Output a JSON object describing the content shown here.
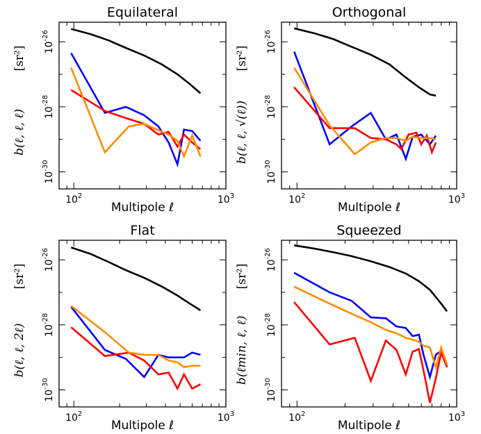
{
  "chart_data": [
    {
      "type": "line",
      "title": "Equilateral",
      "xlabel": "Multipole ℓ",
      "ylabel": "b(ℓ, ℓ, ℓ)",
      "yunit": "[sr²]",
      "xscale": "log",
      "yscale": "log",
      "xlim": [
        80,
        1000
      ],
      "ylim": [
        3e-31,
        4e-26
      ],
      "xticks": [
        {
          "base": "10",
          "exp": "2",
          "value": 100
        },
        {
          "base": "10",
          "exp": "3",
          "value": 1000
        }
      ],
      "yticks": [
        {
          "base": "10",
          "exp": "-30",
          "value": 1e-30
        },
        {
          "base": "10",
          "exp": "-28",
          "value": 1e-28
        },
        {
          "base": "10",
          "exp": "-26",
          "value": 1e-26
        }
      ],
      "series": [
        {
          "color": "#000000",
          "x": [
            96,
            130,
            170,
            220,
            290,
            380,
            480,
            580,
            680
          ],
          "y": [
            2.5e-26,
            1.7e-26,
            1.1e-26,
            6.5e-27,
            3.8e-27,
            2e-27,
            1e-27,
            5e-28,
            2.6e-28
          ]
        },
        {
          "color": "#0000ff",
          "x": [
            96,
            160,
            220,
            290,
            360,
            420,
            480,
            530,
            600,
            680
          ],
          "y": [
            4.5e-27,
            6.5e-29,
            1e-28,
            5.5e-29,
            2.5e-29,
            8e-30,
            1.7e-30,
            2e-29,
            1.8e-29,
            9e-30
          ]
        },
        {
          "color": "#ff0000",
          "x": [
            96,
            160,
            220,
            290,
            360,
            420,
            480,
            530,
            600,
            680
          ],
          "y": [
            3.3e-28,
            7.5e-29,
            4.5e-29,
            3e-29,
            1.4e-29,
            1.7e-29,
            6e-30,
            1.4e-29,
            8e-30,
            5e-30
          ]
        },
        {
          "color": "#ff8c00",
          "x": [
            96,
            160,
            230,
            290,
            360,
            420,
            480,
            530,
            600,
            680
          ],
          "y": [
            1.6e-27,
            4e-30,
            2.5e-29,
            3e-29,
            1.9e-29,
            1.4e-29,
            9e-30,
            3e-30,
            1.3e-29,
            3e-30
          ]
        }
      ]
    },
    {
      "type": "line",
      "title": "Orthogonal",
      "xlabel": "Multipole ℓ",
      "ylabel": "b(ℓ, ℓ, √(ℓ))",
      "yunit": "[sr²]",
      "xscale": "log",
      "yscale": "log",
      "xlim": [
        80,
        1000
      ],
      "ylim": [
        3e-31,
        4e-26
      ],
      "xticks": [
        {
          "base": "10",
          "exp": "2",
          "value": 100
        },
        {
          "base": "10",
          "exp": "3",
          "value": 1000
        }
      ],
      "yticks": [
        {
          "base": "10",
          "exp": "-30",
          "value": 1e-30
        },
        {
          "base": "10",
          "exp": "-28",
          "value": 1e-28
        },
        {
          "base": "10",
          "exp": "-26",
          "value": 1e-26
        }
      ],
      "series": [
        {
          "color": "#000000",
          "x": [
            96,
            130,
            170,
            220,
            290,
            380,
            480,
            580,
            680,
            740
          ],
          "y": [
            2.6e-26,
            1.8e-26,
            1.2e-26,
            7e-27,
            4e-27,
            2e-27,
            8e-28,
            4e-28,
            2.4e-28,
            2.2e-28
          ]
        },
        {
          "color": "#0000ff",
          "x": [
            96,
            160,
            220,
            290,
            360,
            420,
            480,
            530,
            600,
            680,
            740
          ],
          "y": [
            5e-27,
            7e-30,
            2.5e-29,
            6.5e-29,
            1e-29,
            1.4e-29,
            2.5e-30,
            1.2e-29,
            1.4e-29,
            7e-30,
            1.3e-29
          ]
        },
        {
          "color": "#ff0000",
          "x": [
            96,
            160,
            230,
            290,
            360,
            420,
            450,
            500,
            560,
            600,
            650,
            700,
            740
          ],
          "y": [
            4e-28,
            2.2e-29,
            2.2e-29,
            1.1e-29,
            1e-29,
            7e-30,
            5e-30,
            1.4e-29,
            1.6e-29,
            7e-30,
            1.3e-29,
            4e-30,
            8e-30
          ]
        },
        {
          "color": "#ff8c00",
          "x": [
            96,
            160,
            230,
            290,
            360,
            420,
            480,
            530,
            600,
            680,
            740
          ],
          "y": [
            1.6e-27,
            2.7e-29,
            3.5e-30,
            8e-30,
            1.1e-29,
            1.1e-29,
            9e-30,
            1.2e-29,
            1.1e-29,
            1.1e-29,
            1e-29
          ]
        }
      ]
    },
    {
      "type": "line",
      "title": "Flat",
      "xlabel": "Multipole ℓ",
      "ylabel": "b(ℓ, ℓ, 2ℓ)",
      "yunit": "[sr²]",
      "xscale": "log",
      "yscale": "log",
      "xlim": [
        80,
        1000
      ],
      "ylim": [
        3e-31,
        4e-26
      ],
      "xticks": [
        {
          "base": "10",
          "exp": "2",
          "value": 100
        },
        {
          "base": "10",
          "exp": "3",
          "value": 1000
        }
      ],
      "yticks": [
        {
          "base": "10",
          "exp": "-30",
          "value": 1e-30
        },
        {
          "base": "10",
          "exp": "-28",
          "value": 1e-28
        },
        {
          "base": "10",
          "exp": "-26",
          "value": 1e-26
        }
      ],
      "series": [
        {
          "color": "#000000",
          "x": [
            96,
            130,
            170,
            220,
            290,
            380,
            480,
            580,
            680
          ],
          "y": [
            2.4e-26,
            1.5e-26,
            8.5e-27,
            4.8e-27,
            2.8e-27,
            1.5e-27,
            8e-28,
            4.5e-28,
            2.8e-28
          ]
        },
        {
          "color": "#0000ff",
          "x": [
            96,
            160,
            220,
            290,
            360,
            420,
            480,
            530,
            600,
            680
          ],
          "y": [
            3.6e-28,
            1.7e-29,
            9e-30,
            2.5e-30,
            1.2e-29,
            1e-29,
            1e-29,
            1e-29,
            1.4e-29,
            1.2e-29
          ]
        },
        {
          "color": "#ff0000",
          "x": [
            96,
            160,
            230,
            290,
            360,
            420,
            480,
            530,
            600,
            680
          ],
          "y": [
            8.5e-29,
            1.1e-29,
            1.4e-29,
            8e-30,
            3e-30,
            3.4e-30,
            1.1e-30,
            3e-30,
            1.1e-30,
            1.5e-30
          ]
        },
        {
          "color": "#ff8c00",
          "x": [
            96,
            160,
            230,
            290,
            360,
            420,
            480,
            530,
            600,
            680
          ],
          "y": [
            3.8e-28,
            6e-29,
            1.4e-29,
            1.2e-29,
            1.2e-29,
            8e-30,
            7e-30,
            5e-30,
            5.5e-30,
            5.5e-30
          ]
        }
      ]
    },
    {
      "type": "line",
      "title": "Squeezed",
      "xlabel": "Multipole ℓ",
      "ylabel": "b(ℓmin, ℓ, ℓ)",
      "yunit": "[sr²]",
      "xscale": "log",
      "yscale": "log",
      "xlim": [
        80,
        1000
      ],
      "ylim": [
        3e-31,
        4e-26
      ],
      "xticks": [
        {
          "base": "10",
          "exp": "2",
          "value": 100
        },
        {
          "base": "10",
          "exp": "3",
          "value": 1000
        }
      ],
      "yticks": [
        {
          "base": "10",
          "exp": "-30",
          "value": 1e-30
        },
        {
          "base": "10",
          "exp": "-28",
          "value": 1e-28
        },
        {
          "base": "10",
          "exp": "-26",
          "value": 1e-26
        }
      ],
      "series": [
        {
          "color": "#000000",
          "x": [
            96,
            130,
            170,
            220,
            290,
            380,
            480,
            580,
            680,
            800,
            870
          ],
          "y": [
            2.8e-26,
            2.2e-26,
            1.7e-26,
            1.3e-26,
            9e-27,
            6e-27,
            3.8e-27,
            2.2e-27,
            1.2e-27,
            4.5e-28,
            2.6e-28
          ]
        },
        {
          "color": "#0000ff",
          "x": [
            96,
            160,
            220,
            290,
            360,
            420,
            480,
            530,
            580,
            620,
            680,
            740,
            800,
            870
          ],
          "y": [
            4e-27,
            1e-27,
            5.5e-28,
            1.7e-28,
            1.6e-28,
            9e-29,
            8e-29,
            4.5e-29,
            5e-29,
            1.2e-29,
            2.5e-30,
            1.2e-29,
            1.6e-29,
            5e-30
          ]
        },
        {
          "color": "#ff0000",
          "x": [
            96,
            160,
            230,
            290,
            360,
            420,
            480,
            530,
            580,
            620,
            680,
            740,
            800,
            870
          ],
          "y": [
            5e-28,
            2.5e-29,
            4e-29,
            1.9e-30,
            3.3e-29,
            1.7e-29,
            3e-30,
            1.5e-29,
            1.8e-29,
            4e-30,
            4e-31,
            2.3e-30,
            1.4e-29,
            5e-30
          ]
        },
        {
          "color": "#ff8c00",
          "x": [
            96,
            160,
            220,
            290,
            360,
            420,
            480,
            530,
            580,
            620,
            680,
            740,
            800,
            870
          ],
          "y": [
            1.5e-27,
            4.5e-28,
            2.2e-28,
            1.2e-28,
            7e-29,
            5.5e-29,
            4e-29,
            3.5e-29,
            3e-29,
            2.3e-29,
            2e-29,
            5e-30,
            2e-29,
            6e-30
          ]
        }
      ]
    }
  ]
}
